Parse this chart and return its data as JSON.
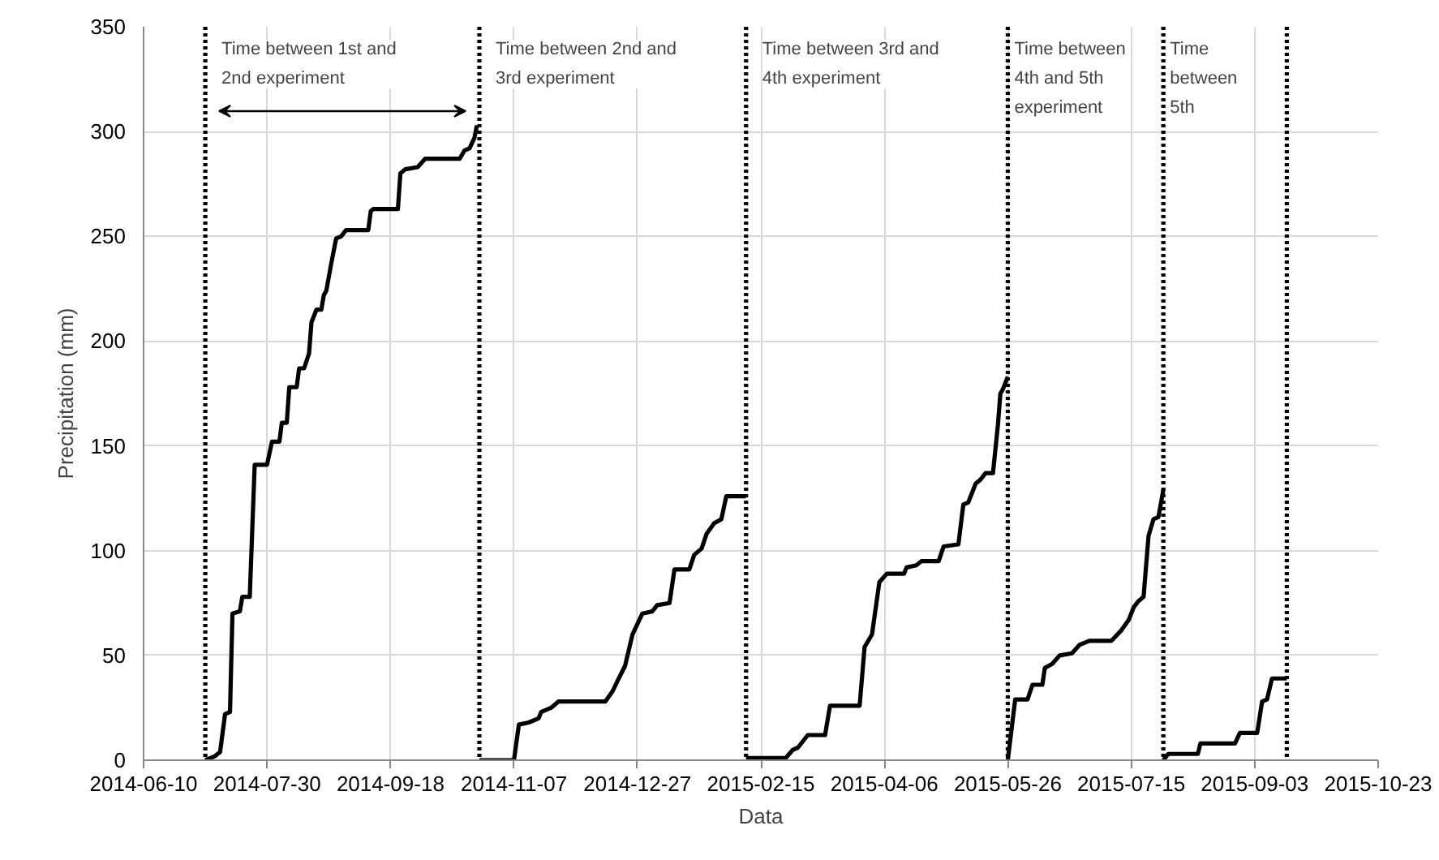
{
  "chart_data": {
    "type": "line",
    "xlabel": "Data",
    "ylabel": "Precipitation (mm)",
    "xlim": [
      "2014-06-10",
      "2015-10-23"
    ],
    "ylim": [
      0,
      350
    ],
    "xticks": [
      "2014-06-10",
      "2014-07-30",
      "2014-09-18",
      "2014-11-07",
      "2014-12-27",
      "2015-02-15",
      "2015-04-06",
      "2015-05-26",
      "2015-07-15",
      "2015-09-03",
      "2015-10-23"
    ],
    "yticks": [
      0,
      50,
      100,
      150,
      200,
      250,
      300,
      350
    ],
    "grid": true,
    "marker": "none",
    "line_style": "solid",
    "series": [
      {
        "color": "#000000",
        "x": [
          "2014-07-05",
          "2014-07-09",
          "2014-07-11",
          "2014-07-13",
          "2014-07-15",
          "2014-07-16",
          "2014-07-19",
          "2014-07-20",
          "2014-07-23",
          "2014-07-25",
          "2014-07-30",
          "2014-08-01",
          "2014-08-04",
          "2014-08-05",
          "2014-08-07",
          "2014-08-08",
          "2014-08-11",
          "2014-08-12",
          "2014-08-14",
          "2014-08-16",
          "2014-08-17",
          "2014-08-19",
          "2014-08-21",
          "2014-08-22",
          "2014-08-23",
          "2014-08-25",
          "2014-08-27",
          "2014-08-29",
          "2014-08-31",
          "2014-09-09",
          "2014-09-10",
          "2014-09-11",
          "2014-09-21",
          "2014-09-22",
          "2014-09-24",
          "2014-09-29",
          "2014-10-02",
          "2014-10-16",
          "2014-10-18",
          "2014-10-20",
          "2014-10-22",
          "2014-10-23"
        ],
        "values": [
          0,
          2,
          4,
          22,
          23,
          70,
          71,
          78,
          78,
          141,
          141,
          152,
          152,
          161,
          161,
          178,
          178,
          187,
          187,
          194,
          209,
          215,
          215,
          222,
          224,
          237,
          249,
          250,
          253,
          253,
          262,
          263,
          263,
          280,
          282,
          283,
          287,
          287,
          291,
          292,
          297,
          303
        ]
      },
      {
        "color": "#000000",
        "x": [
          "2014-10-24",
          "2014-11-07",
          "2014-11-09",
          "2014-11-13",
          "2014-11-17",
          "2014-11-18",
          "2014-11-22",
          "2014-11-25",
          "2014-12-14",
          "2014-12-17",
          "2014-12-19",
          "2014-12-22",
          "2014-12-25",
          "2014-12-29",
          "2015-01-02",
          "2015-01-04",
          "2015-01-09",
          "2015-01-11",
          "2015-01-17",
          "2015-01-19",
          "2015-01-22",
          "2015-01-24",
          "2015-01-27",
          "2015-01-30",
          "2015-02-01",
          "2015-02-09"
        ],
        "values": [
          0,
          0,
          17,
          18,
          20,
          23,
          25,
          28,
          28,
          33,
          38,
          45,
          60,
          70,
          71,
          74,
          75,
          91,
          91,
          98,
          101,
          108,
          113,
          115,
          126,
          126
        ]
      },
      {
        "color": "#000000",
        "x": [
          "2015-02-09",
          "2015-02-25",
          "2015-02-28",
          "2015-03-02",
          "2015-03-06",
          "2015-03-13",
          "2015-03-15",
          "2015-03-27",
          "2015-03-29",
          "2015-04-01",
          "2015-04-04",
          "2015-04-07",
          "2015-04-14",
          "2015-04-15",
          "2015-04-19",
          "2015-04-21",
          "2015-04-28",
          "2015-04-30",
          "2015-05-06",
          "2015-05-08",
          "2015-05-10",
          "2015-05-13",
          "2015-05-15",
          "2015-05-17",
          "2015-05-20",
          "2015-05-22",
          "2015-05-23",
          "2015-05-24",
          "2015-05-26"
        ],
        "values": [
          1,
          1,
          5,
          6,
          12,
          12,
          26,
          26,
          54,
          60,
          85,
          89,
          89,
          92,
          93,
          95,
          95,
          102,
          103,
          122,
          123,
          132,
          134,
          137,
          137,
          160,
          175,
          177,
          183
        ]
      },
      {
        "color": "#000000",
        "x": [
          "2015-05-26",
          "2015-05-29",
          "2015-06-03",
          "2015-06-05",
          "2015-06-09",
          "2015-06-10",
          "2015-06-13",
          "2015-06-16",
          "2015-06-21",
          "2015-06-24",
          "2015-06-28",
          "2015-07-07",
          "2015-07-11",
          "2015-07-14",
          "2015-07-16",
          "2015-07-18",
          "2015-07-20",
          "2015-07-22",
          "2015-07-24",
          "2015-07-26",
          "2015-07-28"
        ],
        "values": [
          0,
          29,
          29,
          36,
          36,
          44,
          46,
          50,
          51,
          55,
          57,
          57,
          62,
          67,
          73,
          76,
          78,
          107,
          115,
          116,
          129
        ]
      },
      {
        "color": "#000000",
        "x": [
          "2015-07-28",
          "2015-07-30",
          "2015-08-11",
          "2015-08-12",
          "2015-08-26",
          "2015-08-28",
          "2015-09-04",
          "2015-09-06",
          "2015-09-08",
          "2015-09-10",
          "2015-09-16"
        ],
        "values": [
          0,
          3,
          3,
          8,
          8,
          13,
          13,
          28,
          29,
          39,
          39
        ]
      }
    ],
    "ref_lines": [
      {
        "axis": "x",
        "value": "2014-07-05",
        "color": "#000000",
        "line_style": "dotted"
      },
      {
        "axis": "x",
        "value": "2014-10-24",
        "color": "#000000",
        "line_style": "dotted"
      },
      {
        "axis": "x",
        "value": "2015-02-09",
        "color": "#000000",
        "line_style": "dotted"
      },
      {
        "axis": "x",
        "value": "2015-05-26",
        "color": "#000000",
        "line_style": "dotted"
      },
      {
        "axis": "x",
        "value": "2015-07-28",
        "color": "#000000",
        "line_style": "dotted"
      },
      {
        "axis": "x",
        "value": "2015-09-16",
        "color": "#000000",
        "line_style": "dotted"
      }
    ],
    "annotations": [
      "Time between 1st and 2nd experiment",
      "Time between 2nd and 3rd experiment",
      "Time between 3rd and 4th experiment",
      "Time between 4th and 5th experiment",
      "Time between 5th"
    ]
  }
}
